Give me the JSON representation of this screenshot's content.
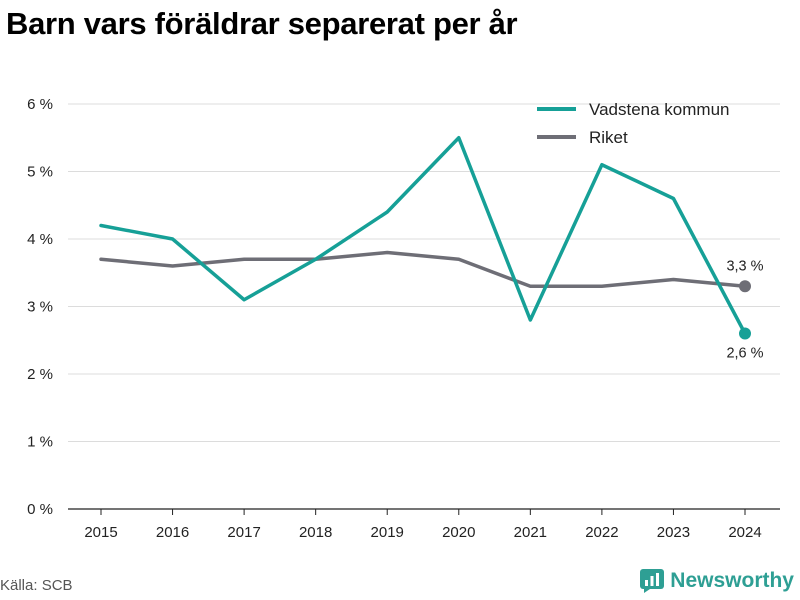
{
  "title": "Barn vars föräldrar separerat per år",
  "source": "Källa: SCB",
  "brand": {
    "name": "Newsworthy",
    "icon": "newsworthy-logo-icon",
    "color": "#2e9f94"
  },
  "chart_data": {
    "type": "line",
    "x": [
      "2015",
      "2016",
      "2017",
      "2018",
      "2019",
      "2020",
      "2021",
      "2022",
      "2023",
      "2024"
    ],
    "ylim": [
      0,
      6
    ],
    "yticks": [
      0,
      1,
      2,
      3,
      4,
      5,
      6
    ],
    "ytick_labels": [
      "0 %",
      "1 %",
      "2 %",
      "3 %",
      "4 %",
      "5 %",
      "6 %"
    ],
    "grid": true,
    "legend_position": "top-right",
    "series": [
      {
        "name": "Vadstena kommun",
        "color": "#16a097",
        "values": [
          4.2,
          4.0,
          3.1,
          3.7,
          4.4,
          5.5,
          2.8,
          5.1,
          4.6,
          2.6
        ],
        "end_label": "2,6 %"
      },
      {
        "name": "Riket",
        "color": "#6e6e76",
        "values": [
          3.7,
          3.6,
          3.7,
          3.7,
          3.8,
          3.7,
          3.3,
          3.3,
          3.4,
          3.3
        ],
        "end_label": "3,3 %"
      }
    ]
  }
}
